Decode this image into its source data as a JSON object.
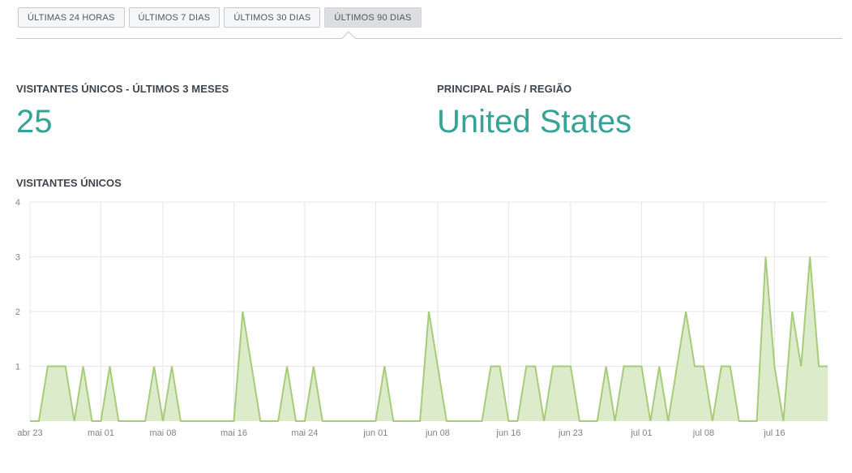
{
  "tabs": [
    {
      "label": "ÚLTIMAS 24 HORAS",
      "active": false
    },
    {
      "label": "ÚLTIMOS 7 DIAS",
      "active": false
    },
    {
      "label": "ÚLTIMOS 30 DIAS",
      "active": false
    },
    {
      "label": "ÚLTIMOS 90 DIAS",
      "active": true
    }
  ],
  "stats": {
    "visitors_label": "VISITANTES ÚNICOS - ÚLTIMOS 3 MESES",
    "visitors_value": "25",
    "country_label": "PRINCIPAL PAÍS / REGIÃO",
    "country_value": "United States"
  },
  "colors": {
    "accent": "#36a396",
    "series_line": "#a6cc7a",
    "series_fill": "#dcebc9"
  },
  "chart_data": {
    "type": "area",
    "title": "VISITANTES ÚNICOS",
    "xlabel": "",
    "ylabel": "",
    "ylim": [
      0,
      4
    ],
    "yticks": [
      1,
      2,
      3,
      4
    ],
    "grid": true,
    "legend": "none",
    "x_tick_labels": [
      "abr 23",
      "mai 01",
      "mai 08",
      "mai 16",
      "mai 24",
      "jun 01",
      "jun 08",
      "jun 16",
      "jun 23",
      "jul 01",
      "jul 08",
      "jul 16"
    ],
    "x_tick_day_index": [
      0,
      8,
      15,
      23,
      31,
      39,
      46,
      54,
      61,
      69,
      76,
      84
    ],
    "series": [
      {
        "values": [
          0,
          0,
          1,
          1,
          1,
          0,
          1,
          0,
          0,
          1,
          0,
          0,
          0,
          0,
          1,
          0,
          1,
          0,
          0,
          0,
          0,
          0,
          0,
          0,
          2,
          1,
          0,
          0,
          0,
          1,
          0,
          0,
          1,
          0,
          0,
          0,
          0,
          0,
          0,
          0,
          1,
          0,
          0,
          0,
          0,
          2,
          1,
          0,
          0,
          0,
          0,
          0,
          1,
          1,
          0,
          0,
          1,
          1,
          0,
          1,
          1,
          1,
          0,
          0,
          0,
          1,
          0,
          1,
          1,
          1,
          0,
          1,
          0,
          1,
          2,
          1,
          1,
          0,
          1,
          1,
          0,
          0,
          0,
          3,
          1,
          0,
          2,
          1,
          3,
          1,
          1
        ]
      }
    ]
  }
}
